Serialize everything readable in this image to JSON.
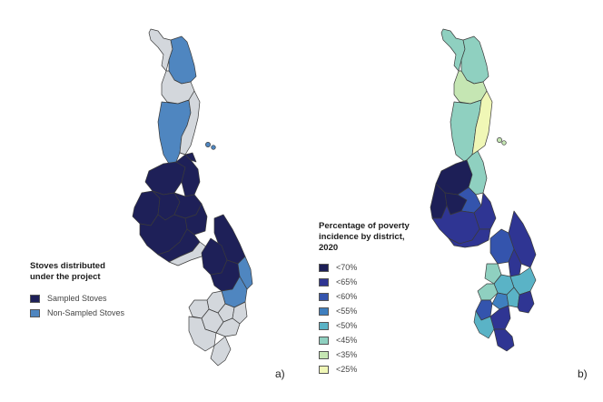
{
  "panel_a": {
    "label": "a)",
    "legend": {
      "title_line1": "Stoves distributed",
      "title_line2": "under the project",
      "items": [
        {
          "label": "Sampled Stoves",
          "color": "#1e2058"
        },
        {
          "label": "Non-Sampled Stoves",
          "color": "#4f86c0"
        }
      ]
    },
    "colors": {
      "sampled": "#1e2058",
      "non_sampled": "#4f86c0",
      "not_distributed": "#d3d7dc",
      "border": "#3a3a3a"
    }
  },
  "panel_b": {
    "label": "b)",
    "legend": {
      "title_line1": "Percentage of poverty",
      "title_line2": "incidence by district,",
      "title_line3": "2020",
      "items": [
        {
          "label": "<70%",
          "color": "#1d1f57"
        },
        {
          "label": "<65%",
          "color": "#2f3593"
        },
        {
          "label": "<60%",
          "color": "#3454ad"
        },
        {
          "label": "<55%",
          "color": "#3f7fbf"
        },
        {
          "label": "<50%",
          "color": "#5ab3c6"
        },
        {
          "label": "<45%",
          "color": "#8fd0c0"
        },
        {
          "label": "<35%",
          "color": "#c5e6b3"
        },
        {
          "label": "<25%",
          "color": "#f0f7b6"
        }
      ]
    }
  }
}
